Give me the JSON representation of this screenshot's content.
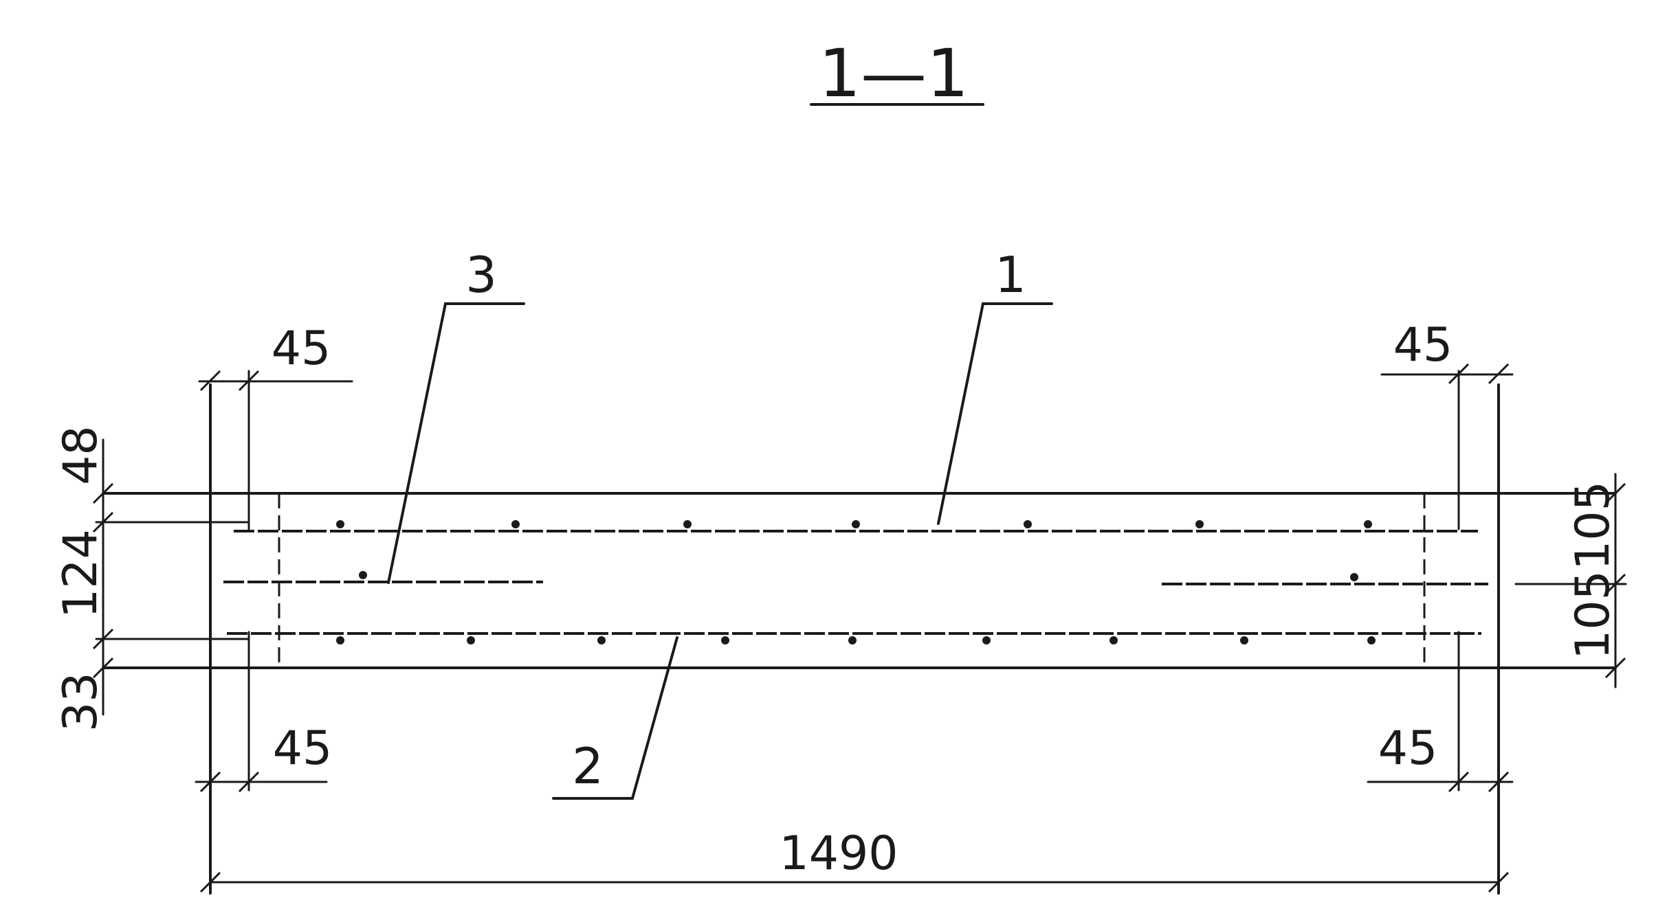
{
  "section": {
    "title": "1—1"
  },
  "labels": {
    "pos1": "1",
    "pos2": "2",
    "pos3": "3"
  },
  "dimensions": {
    "top_left": "45",
    "top_right": "45",
    "bottom_left": "45",
    "bottom_right": "45",
    "left_top": "48",
    "left_middle": "124",
    "left_bottom": "33",
    "right_upper": "105",
    "right_lower": "105",
    "overall_width": "1490"
  }
}
